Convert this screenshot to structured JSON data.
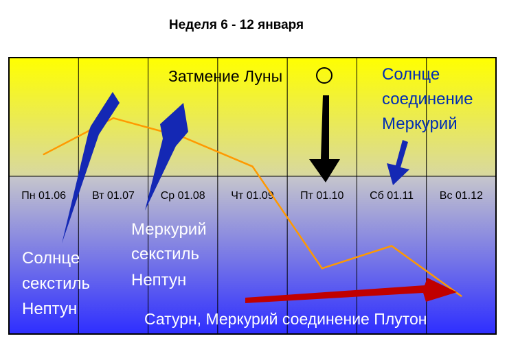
{
  "chart_data": {
    "type": "line",
    "title": "Неделя 6 - 12 января",
    "categories": [
      "Пн 01.06",
      "Вт 01.07",
      "Ср 01.08",
      "Чт 01.09",
      "Пт 01.10",
      "Сб 01.11",
      "Вс 01.12"
    ],
    "series": [
      {
        "values": [
          0.7,
          1.75,
          1.2,
          0.35,
          -2.6,
          -1.95,
          -3.4
        ],
        "color": "#FF9900"
      }
    ],
    "ylim": [
      -4.5,
      3.5
    ],
    "grid": "vertical",
    "annotations": [
      {
        "text": "Затмение Луны ◯",
        "color": "#000000",
        "arrow": "down",
        "day": "Пт 01.10"
      },
      {
        "text": "Солнце соединение Меркурий",
        "color": "#002DB3",
        "arrow": "down",
        "day": "Сб 01.11"
      },
      {
        "text": "Солнце секстиль Нептун",
        "color": "#FFFFFF",
        "arrow": "up",
        "day": "Вт 01.07"
      },
      {
        "text": "Меркурий секстиль Нептун",
        "color": "#FFFFFF",
        "arrow": "up",
        "day": "Ср 01.08"
      },
      {
        "text": "Сатурн, Меркурий соединение Плутон",
        "color": "#FFFFFF",
        "arrow": "right"
      }
    ],
    "colors": {
      "top_gradient": [
        "#FFFF00",
        "#D8D8A0"
      ],
      "bottom_gradient": [
        "#C4C4D0",
        "#2E2EFF"
      ],
      "blue_arrow": "#1428B4",
      "red_arrow": "#C00000",
      "line": "#FF9900"
    }
  },
  "labels": {
    "eclipse": "Затмение Луны",
    "sun_merc": [
      "Солнце",
      "соединение",
      "Меркурий"
    ],
    "sun_sext": [
      "Солнце",
      "секстиль",
      "Нептун"
    ],
    "merc_sext": [
      "Меркурий",
      "секстиль",
      "Нептун"
    ],
    "bottom": "Сатурн, Меркурий соединение Плутон"
  }
}
